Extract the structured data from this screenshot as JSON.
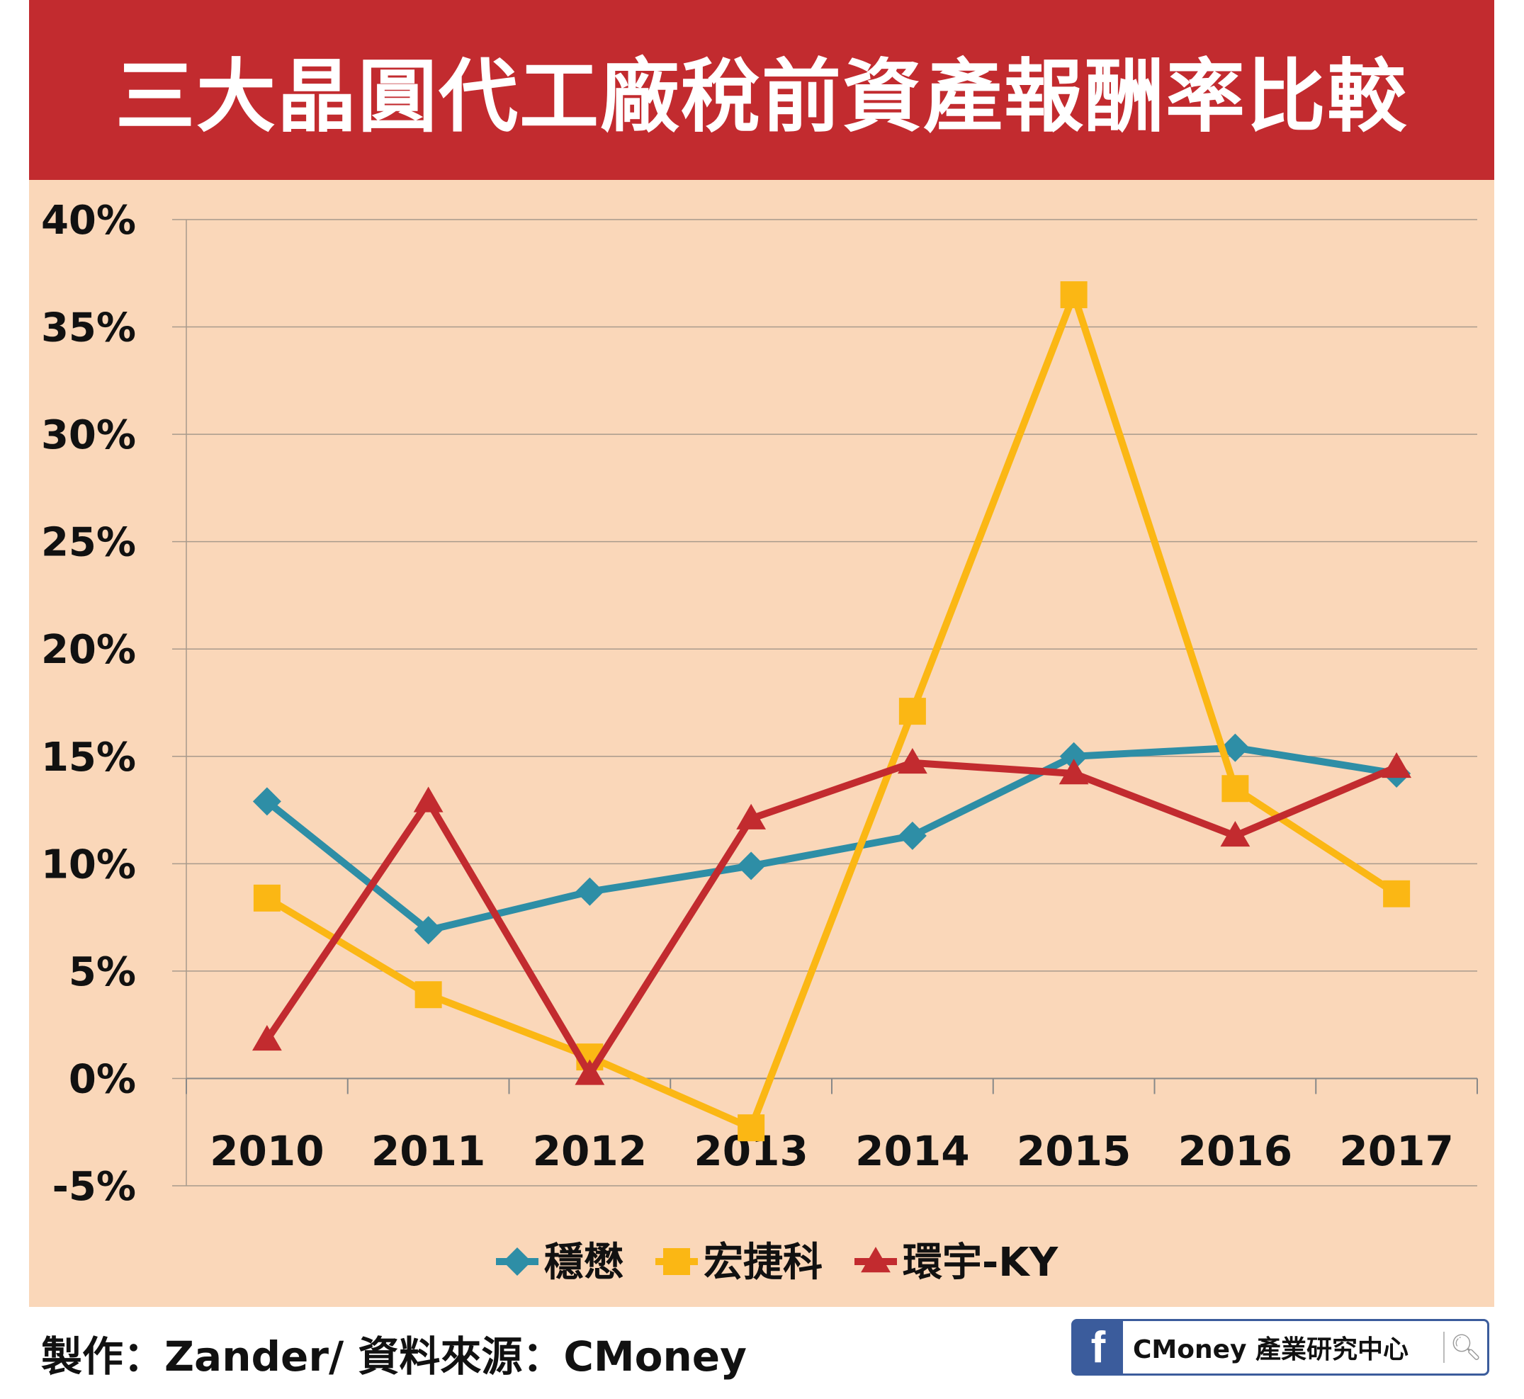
{
  "title": "三大晶圓代工廠稅前資產報酬率比較",
  "footer": "製作：Zander/ 資料來源：CMoney",
  "logo": {
    "icon": "facebook-icon",
    "text": "CMoney 產業研究中心",
    "search_icon": "search-icon"
  },
  "chart_data": {
    "type": "line",
    "title": "三大晶圓代工廠稅前資產報酬率比較",
    "categories": [
      "2010",
      "2011",
      "2012",
      "2013",
      "2014",
      "2015",
      "2016",
      "2017"
    ],
    "ylim": [
      -5,
      40
    ],
    "yticks": [
      "40%",
      "35%",
      "30%",
      "25%",
      "20%",
      "15%",
      "10%",
      "5%",
      "0%",
      "-5%"
    ],
    "ytick_values": [
      40,
      35,
      30,
      25,
      20,
      15,
      10,
      5,
      0,
      -5
    ],
    "grid": true,
    "legend": "bottom",
    "series": [
      {
        "name": "穩懋",
        "color": "#2e8ea6",
        "marker": "diamond",
        "values": [
          12.9,
          6.9,
          8.7,
          9.9,
          11.3,
          15.0,
          15.4,
          14.2
        ]
      },
      {
        "name": "宏捷科",
        "color": "#fbb714",
        "marker": "square",
        "values": [
          8.4,
          3.9,
          1.0,
          -2.3,
          17.1,
          36.5,
          13.5,
          8.6
        ]
      },
      {
        "name": "環宇-KY",
        "color": "#c22b2f",
        "marker": "triangle",
        "values": [
          1.8,
          12.9,
          0.2,
          12.1,
          14.7,
          14.2,
          11.3,
          14.5
        ]
      }
    ]
  }
}
